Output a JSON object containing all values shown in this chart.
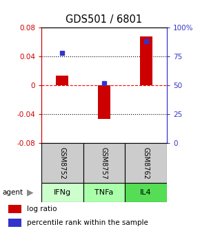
{
  "title": "GDS501 / 6801",
  "samples": [
    "GSM8752",
    "GSM8757",
    "GSM8762"
  ],
  "agents": [
    "IFNg",
    "TNFa",
    "IL4"
  ],
  "log_ratios": [
    0.013,
    -0.047,
    0.068
  ],
  "percentile_ranks": [
    78,
    52,
    88
  ],
  "bar_color": "#cc0000",
  "dot_color": "#3333cc",
  "ylim_left": [
    -0.08,
    0.08
  ],
  "ylim_right": [
    0,
    100
  ],
  "yticks_left": [
    -0.08,
    -0.04,
    0.0,
    0.04,
    0.08
  ],
  "ytick_labels_left": [
    "-0.08",
    "-0.04",
    "0",
    "0.04",
    "0.08"
  ],
  "yticks_right": [
    0,
    25,
    50,
    75,
    100
  ],
  "ytick_labels_right": [
    "0",
    "25",
    "50",
    "75",
    "100%"
  ],
  "agent_colors": [
    "#ccffcc",
    "#aaffaa",
    "#55dd55"
  ],
  "sample_bg_color": "#cccccc",
  "legend_log_ratio": "log ratio",
  "legend_percentile": "percentile rank within the sample"
}
